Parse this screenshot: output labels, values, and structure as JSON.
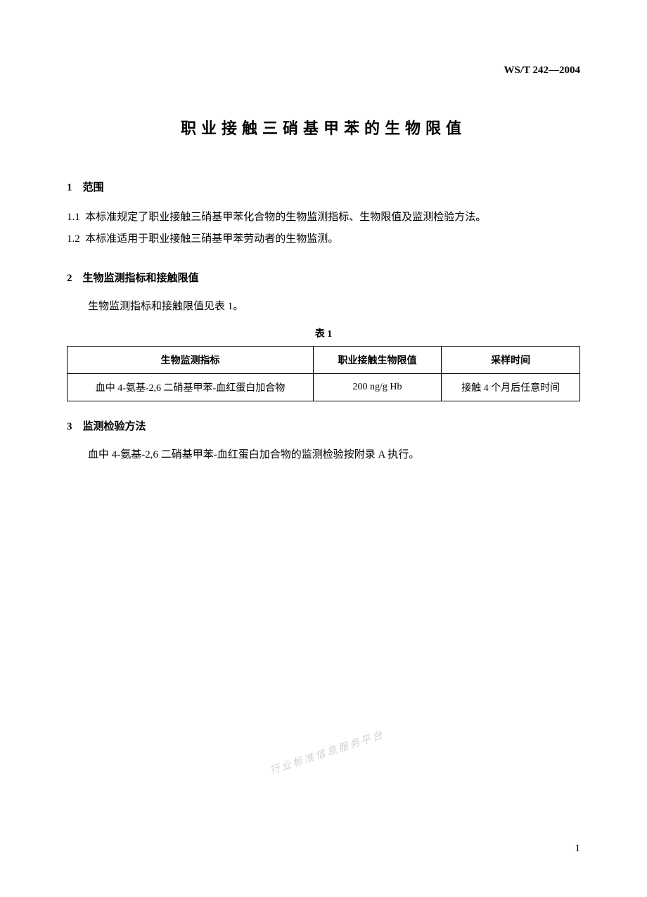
{
  "header": {
    "standard_code": "WS/T 242—2004"
  },
  "title": "职业接触三硝基甲苯的生物限值",
  "sections": {
    "s1": {
      "num": "1",
      "heading": "范围",
      "p1_num": "1.1",
      "p1": "本标准规定了职业接触三硝基甲苯化合物的生物监测指标、生物限值及监测检验方法。",
      "p2_num": "1.2",
      "p2": "本标准适用于职业接触三硝基甲苯劳动者的生物监测。"
    },
    "s2": {
      "num": "2",
      "heading": "生物监测指标和接触限值",
      "p1": "生物监测指标和接触限值见表 1。"
    },
    "s3": {
      "num": "3",
      "heading": "监测检验方法",
      "p1": "血中 4-氨基-2,6 二硝基甲苯-血红蛋白加合物的监测检验按附录 A 执行。"
    }
  },
  "table": {
    "type": "table",
    "caption": "表 1",
    "columns": [
      "生物监测指标",
      "职业接触生物限值",
      "采样时间"
    ],
    "rows": [
      [
        "血中 4-氨基-2,6 二硝基甲苯-血红蛋白加合物",
        "200 ng/g Hb",
        "接触 4 个月后任意时间"
      ]
    ],
    "border_color": "#000000",
    "background_color": "#ffffff",
    "header_font_weight": "bold",
    "cell_fontsize": 14,
    "column_widths": [
      "48%",
      "25%",
      "27%"
    ]
  },
  "watermark": "行业标准信息服务平台",
  "page_number": "1",
  "colors": {
    "text": "#000000",
    "background": "#ffffff",
    "watermark": "#d0d0d0"
  },
  "typography": {
    "title_fontsize": 22,
    "body_fontsize": 15,
    "table_fontsize": 14,
    "font_family": "SimSun"
  }
}
